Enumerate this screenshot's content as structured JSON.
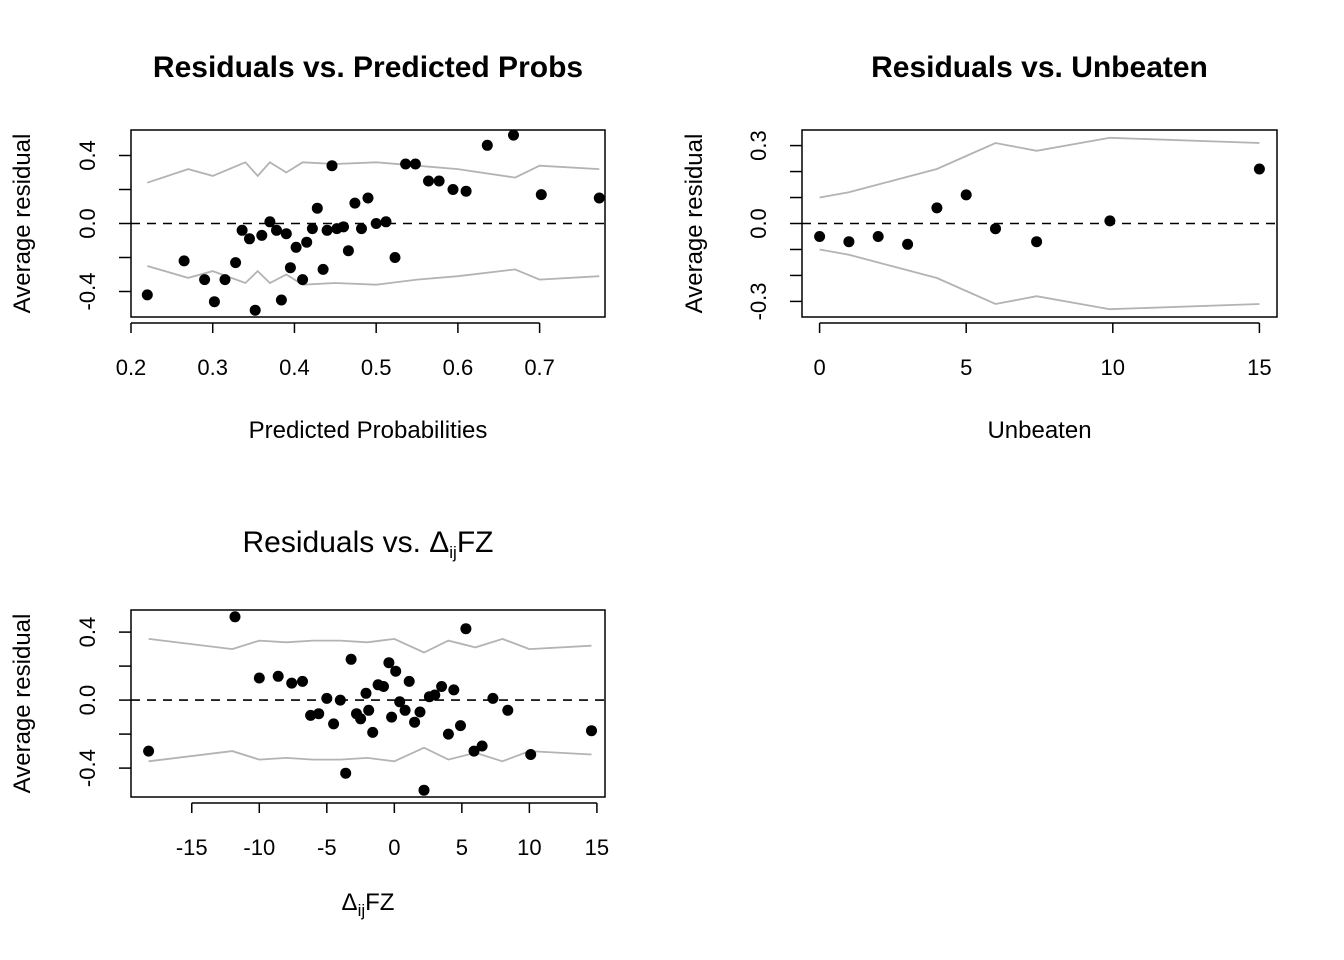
{
  "chart_data": [
    {
      "type": "scatter",
      "title": "Residuals vs. Predicted Probs",
      "title_bold": true,
      "xlabel": "Predicted Probabilities",
      "ylabel": "Average residual",
      "xlim": [
        0.2,
        0.78
      ],
      "ylim": [
        -0.55,
        0.55
      ],
      "xticks": [
        "0.2",
        "0.3",
        "0.4",
        "0.5",
        "0.6",
        "0.7"
      ],
      "xtick_values": [
        0.2,
        0.3,
        0.4,
        0.5,
        0.6,
        0.7
      ],
      "yticks": [
        "-0.4",
        "0.0",
        "0.4"
      ],
      "ytick_values": [
        -0.4,
        0.0,
        0.4
      ],
      "minor_yticks": [
        -0.2,
        0.2
      ],
      "reference_line": 0,
      "points": [
        [
          0.22,
          -0.42
        ],
        [
          0.265,
          -0.22
        ],
        [
          0.29,
          -0.33
        ],
        [
          0.302,
          -0.46
        ],
        [
          0.315,
          -0.33
        ],
        [
          0.328,
          -0.23
        ],
        [
          0.336,
          -0.04
        ],
        [
          0.345,
          -0.09
        ],
        [
          0.352,
          -0.51
        ],
        [
          0.36,
          -0.07
        ],
        [
          0.37,
          0.01
        ],
        [
          0.378,
          -0.04
        ],
        [
          0.384,
          -0.45
        ],
        [
          0.39,
          -0.06
        ],
        [
          0.395,
          -0.26
        ],
        [
          0.402,
          -0.14
        ],
        [
          0.41,
          -0.33
        ],
        [
          0.415,
          -0.11
        ],
        [
          0.422,
          -0.03
        ],
        [
          0.428,
          0.09
        ],
        [
          0.435,
          -0.27
        ],
        [
          0.44,
          -0.04
        ],
        [
          0.446,
          0.34
        ],
        [
          0.452,
          -0.03
        ],
        [
          0.46,
          -0.02
        ],
        [
          0.466,
          -0.16
        ],
        [
          0.474,
          0.12
        ],
        [
          0.482,
          -0.03
        ],
        [
          0.49,
          0.15
        ],
        [
          0.5,
          0.0
        ],
        [
          0.512,
          0.01
        ],
        [
          0.523,
          -0.2
        ],
        [
          0.536,
          0.35
        ],
        [
          0.548,
          0.35
        ],
        [
          0.564,
          0.25
        ],
        [
          0.577,
          0.25
        ],
        [
          0.594,
          0.2
        ],
        [
          0.61,
          0.19
        ],
        [
          0.636,
          0.46
        ],
        [
          0.668,
          0.52
        ],
        [
          0.702,
          0.17
        ],
        [
          0.773,
          0.15
        ]
      ],
      "upper_band": [
        [
          0.22,
          0.24
        ],
        [
          0.27,
          0.32
        ],
        [
          0.3,
          0.28
        ],
        [
          0.34,
          0.36
        ],
        [
          0.355,
          0.28
        ],
        [
          0.37,
          0.36
        ],
        [
          0.39,
          0.3
        ],
        [
          0.41,
          0.36
        ],
        [
          0.45,
          0.35
        ],
        [
          0.5,
          0.36
        ],
        [
          0.55,
          0.34
        ],
        [
          0.6,
          0.32
        ],
        [
          0.67,
          0.27
        ],
        [
          0.7,
          0.34
        ],
        [
          0.773,
          0.32
        ]
      ],
      "lower_band": [
        [
          0.22,
          -0.25
        ],
        [
          0.27,
          -0.32
        ],
        [
          0.3,
          -0.28
        ],
        [
          0.34,
          -0.35
        ],
        [
          0.355,
          -0.28
        ],
        [
          0.37,
          -0.35
        ],
        [
          0.39,
          -0.3
        ],
        [
          0.41,
          -0.36
        ],
        [
          0.45,
          -0.35
        ],
        [
          0.5,
          -0.36
        ],
        [
          0.55,
          -0.33
        ],
        [
          0.6,
          -0.31
        ],
        [
          0.67,
          -0.27
        ],
        [
          0.7,
          -0.33
        ],
        [
          0.773,
          -0.31
        ]
      ]
    },
    {
      "type": "scatter",
      "title": "Residuals vs. Unbeaten",
      "title_bold": true,
      "xlabel": "Unbeaten",
      "ylabel": "Average residual",
      "xlim": [
        -0.6,
        15.6
      ],
      "ylim": [
        -0.36,
        0.36
      ],
      "xticks": [
        "0",
        "5",
        "10",
        "15"
      ],
      "xtick_values": [
        0,
        5,
        10,
        15
      ],
      "yticks": [
        "-0.3",
        "0.0",
        "0.3"
      ],
      "ytick_values": [
        -0.3,
        0.0,
        0.3
      ],
      "minor_yticks": [
        -0.2,
        -0.1,
        0.1,
        0.2
      ],
      "reference_line": 0,
      "points": [
        [
          0,
          -0.05
        ],
        [
          1,
          -0.07
        ],
        [
          2,
          -0.05
        ],
        [
          3,
          -0.08
        ],
        [
          4,
          0.06
        ],
        [
          5,
          0.11
        ],
        [
          6,
          -0.02
        ],
        [
          7.4,
          -0.07
        ],
        [
          9.9,
          0.01
        ],
        [
          15,
          0.21
        ]
      ],
      "upper_band": [
        [
          0,
          0.1
        ],
        [
          1,
          0.12
        ],
        [
          2,
          0.15
        ],
        [
          3,
          0.18
        ],
        [
          4,
          0.21
        ],
        [
          5,
          0.26
        ],
        [
          6,
          0.31
        ],
        [
          7.4,
          0.28
        ],
        [
          9.9,
          0.33
        ],
        [
          15,
          0.31
        ]
      ],
      "lower_band": [
        [
          0,
          -0.1
        ],
        [
          1,
          -0.12
        ],
        [
          2,
          -0.15
        ],
        [
          3,
          -0.18
        ],
        [
          4,
          -0.21
        ],
        [
          5,
          -0.26
        ],
        [
          6,
          -0.31
        ],
        [
          7.4,
          -0.28
        ],
        [
          9.9,
          -0.33
        ],
        [
          15,
          -0.31
        ]
      ]
    },
    {
      "type": "scatter",
      "title": "Residuals vs. ΔijFZ",
      "title_parts": [
        "Residuals vs. Δ",
        "ij",
        "FZ"
      ],
      "title_bold": false,
      "xlabel": "ΔijFZ",
      "xlabel_parts": [
        "Δ",
        "ij",
        "FZ"
      ],
      "ylabel": "Average residual",
      "xlim": [
        -19.5,
        15.6
      ],
      "ylim": [
        -0.57,
        0.53
      ],
      "xticks": [
        "-15",
        "-10",
        "-5",
        "0",
        "5",
        "10",
        "15"
      ],
      "xtick_values": [
        -15,
        -10,
        -5,
        0,
        5,
        10,
        15
      ],
      "yticks": [
        "-0.4",
        "0.0",
        "0.4"
      ],
      "ytick_values": [
        -0.4,
        0.0,
        0.4
      ],
      "minor_yticks": [
        -0.2,
        0.2
      ],
      "reference_line": 0,
      "points": [
        [
          -18.2,
          -0.3
        ],
        [
          -11.8,
          0.49
        ],
        [
          -10,
          0.13
        ],
        [
          -8.6,
          0.14
        ],
        [
          -7.6,
          0.1
        ],
        [
          -6.8,
          0.11
        ],
        [
          -6.2,
          -0.09
        ],
        [
          -5.6,
          -0.08
        ],
        [
          -5,
          0.01
        ],
        [
          -4.5,
          -0.14
        ],
        [
          -4,
          0.0
        ],
        [
          -3.6,
          -0.43
        ],
        [
          -3.2,
          0.24
        ],
        [
          -2.8,
          -0.08
        ],
        [
          -2.5,
          -0.11
        ],
        [
          -2.1,
          0.04
        ],
        [
          -1.9,
          -0.06
        ],
        [
          -1.6,
          -0.19
        ],
        [
          -1.2,
          0.09
        ],
        [
          -0.8,
          0.08
        ],
        [
          -0.4,
          0.22
        ],
        [
          -0.2,
          -0.1
        ],
        [
          0.1,
          0.17
        ],
        [
          0.4,
          -0.01
        ],
        [
          0.8,
          -0.06
        ],
        [
          1.1,
          0.11
        ],
        [
          1.5,
          -0.13
        ],
        [
          1.9,
          -0.07
        ],
        [
          2.2,
          -0.53
        ],
        [
          2.6,
          0.02
        ],
        [
          3,
          0.03
        ],
        [
          3.5,
          0.08
        ],
        [
          4,
          -0.2
        ],
        [
          4.4,
          0.06
        ],
        [
          4.9,
          -0.15
        ],
        [
          5.3,
          0.42
        ],
        [
          5.9,
          -0.3
        ],
        [
          6.5,
          -0.27
        ],
        [
          7.3,
          0.01
        ],
        [
          8.4,
          -0.06
        ],
        [
          10.1,
          -0.32
        ],
        [
          14.6,
          -0.18
        ]
      ],
      "upper_band": [
        [
          -18.2,
          0.36
        ],
        [
          -12,
          0.3
        ],
        [
          -10,
          0.35
        ],
        [
          -8,
          0.34
        ],
        [
          -6,
          0.35
        ],
        [
          -4,
          0.35
        ],
        [
          -2,
          0.34
        ],
        [
          0,
          0.36
        ],
        [
          2.2,
          0.28
        ],
        [
          4,
          0.35
        ],
        [
          6,
          0.31
        ],
        [
          8,
          0.36
        ],
        [
          10,
          0.3
        ],
        [
          14.6,
          0.32
        ]
      ],
      "lower_band": [
        [
          -18.2,
          -0.36
        ],
        [
          -12,
          -0.3
        ],
        [
          -10,
          -0.35
        ],
        [
          -8,
          -0.34
        ],
        [
          -6,
          -0.35
        ],
        [
          -4,
          -0.35
        ],
        [
          -2,
          -0.34
        ],
        [
          0,
          -0.36
        ],
        [
          2.2,
          -0.28
        ],
        [
          4,
          -0.35
        ],
        [
          6,
          -0.31
        ],
        [
          8,
          -0.36
        ],
        [
          10,
          -0.3
        ],
        [
          14.6,
          -0.32
        ]
      ]
    }
  ]
}
